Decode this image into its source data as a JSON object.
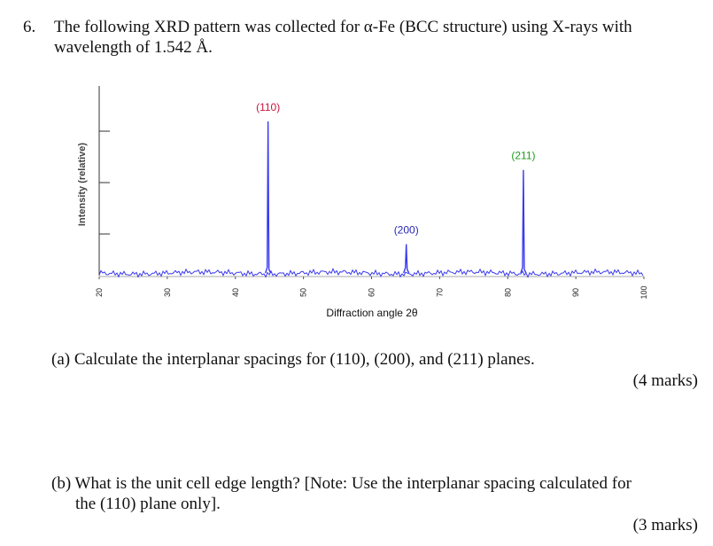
{
  "question": {
    "number": "6.",
    "lines": [
      "The following XRD pattern was collected for α-Fe (BCC structure) using X-rays with",
      "wavelength of 1.542 Å."
    ]
  },
  "chart_data": {
    "type": "line",
    "x_label": "Diffraction angle 2θ",
    "y_label": "Intensity (relative)",
    "xlim": [
      20,
      100
    ],
    "xticks": [
      20,
      30,
      40,
      50,
      60,
      70,
      80,
      90,
      100
    ],
    "ylim": [
      0,
      100
    ],
    "color": "#3a3aee",
    "x": [
      44.8,
      65.1,
      82.3
    ],
    "values": [
      100,
      19,
      68
    ],
    "labels": [
      "(110)",
      "(200)",
      "(211)"
    ],
    "label_colors": [
      "#c8143c",
      "#2828b4",
      "#1e9a1e"
    ]
  },
  "parts": [
    {
      "lines": [
        "(a) Calculate the interplanar spacings for (110), (200), and (211) planes."
      ],
      "marks": "(4 marks)"
    },
    {
      "lines": [
        "(b) What is the unit cell edge length? [Note: Use the interplanar spacing calculated for",
        "the (110) plane only]."
      ],
      "marks": "(3 marks)"
    }
  ]
}
